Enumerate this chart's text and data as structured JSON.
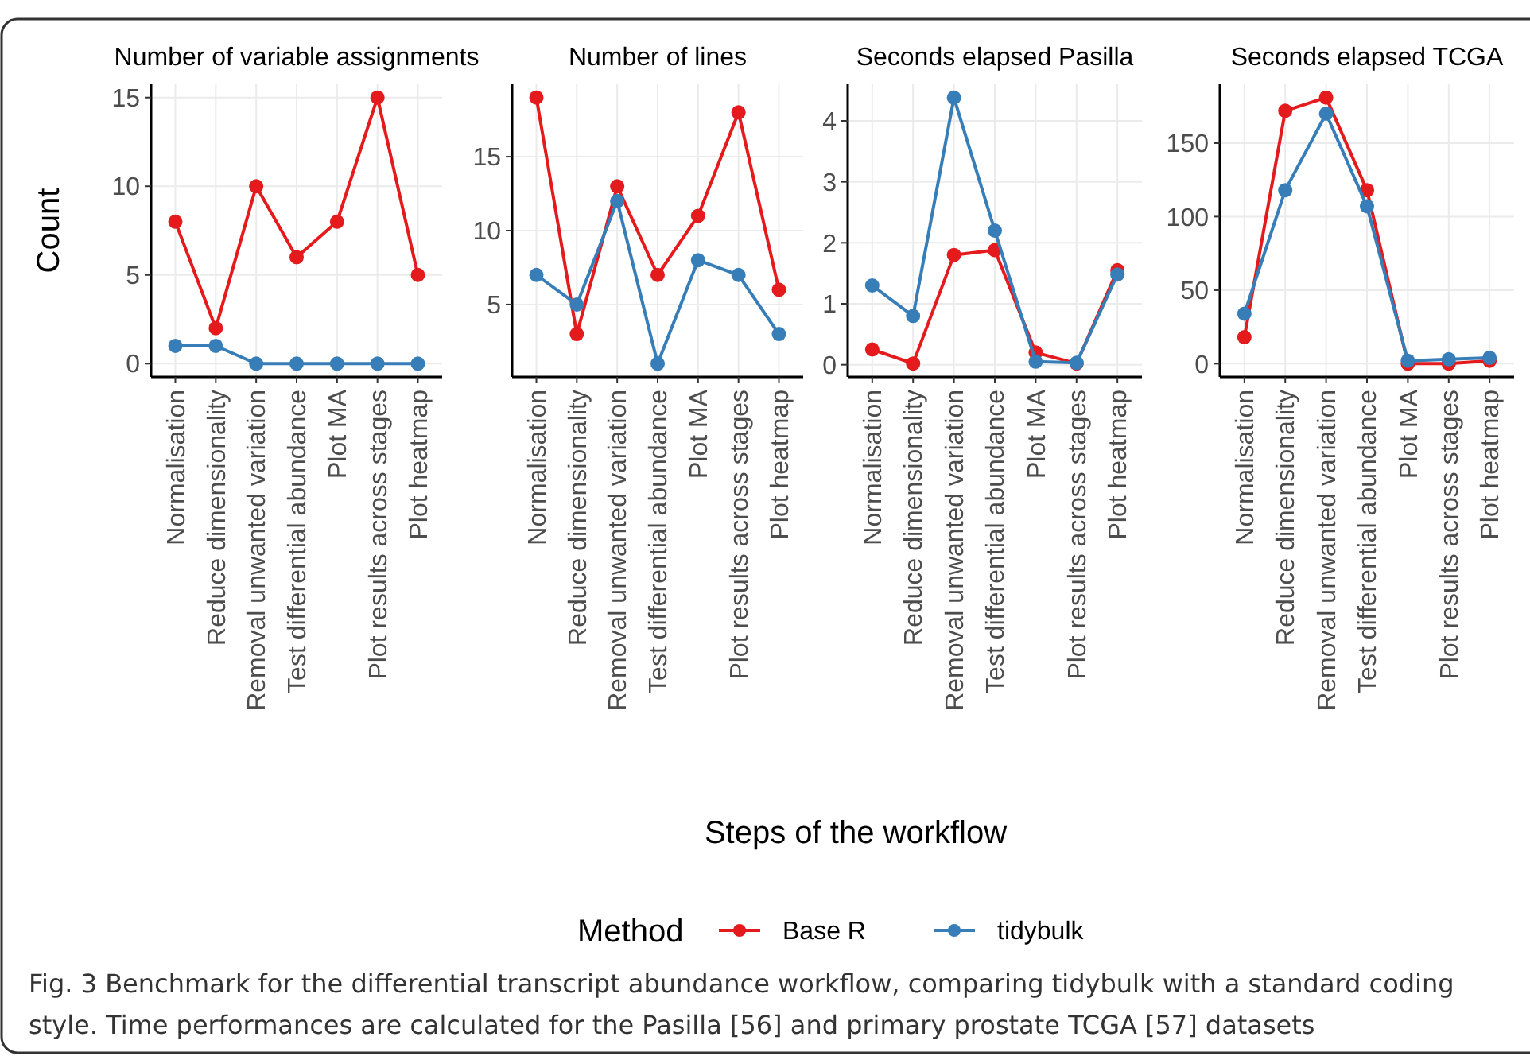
{
  "chart_data": [
    {
      "type": "line",
      "title": "Number of variable assignments",
      "ylabel": "Count",
      "legend": "bottom",
      "legend_title": "Method",
      "marker": "circle",
      "grid": true,
      "categories": [
        "Normalisation",
        "Reduce dimensionality",
        "Removal unwanted variation",
        "Test differential abundance",
        "Plot MA",
        "Plot results across stages",
        "Plot heatmap"
      ],
      "ylim": [
        -0.75,
        15.75
      ],
      "yticks": [
        0,
        5,
        10,
        15
      ],
      "series": [
        {
          "name": "Base R",
          "color": "#e41a1c",
          "values": [
            8,
            2,
            10,
            6,
            8,
            15,
            5
          ]
        },
        {
          "name": "tidybulk",
          "color": "#377eb8",
          "values": [
            1,
            1,
            0,
            0,
            0,
            0,
            0
          ]
        }
      ],
      "annotations": [
        "Fig. 3 Benchmark for the differential transcript abundance workflow, comparing tidybulk with a standard coding style. Time performances are calculated for the Pasilla [56] and primary prostate TCGA [57] datasets"
      ]
    },
    {
      "type": "line",
      "title": "Number of lines",
      "marker": "circle",
      "grid": true,
      "categories": [
        "Normalisation",
        "Reduce dimensionality",
        "Removal unwanted variation",
        "Test differential abundance",
        "Plot MA",
        "Plot results across stages",
        "Plot heatmap"
      ],
      "ylim": [
        0.1,
        19.9
      ],
      "yticks": [
        5,
        10,
        15
      ],
      "series": [
        {
          "color": "#e41a1c",
          "values": [
            19,
            3,
            13,
            7,
            11,
            18,
            6
          ]
        },
        {
          "color": "#377eb8",
          "values": [
            7,
            5,
            12,
            1,
            8,
            7,
            3
          ]
        }
      ]
    },
    {
      "type": "line",
      "title": "Seconds elapsed Pasilla",
      "xlabel": "Steps of the workflow",
      "marker": "circle",
      "grid": true,
      "categories": [
        "Normalisation",
        "Reduce dimensionality",
        "Removal unwanted variation",
        "Test differential abundance",
        "Plot MA",
        "Plot results across stages",
        "Plot heatmap"
      ],
      "ylim": [
        -0.2,
        4.6
      ],
      "yticks": [
        0,
        1,
        2,
        3,
        4
      ],
      "series": [
        {
          "color": "#e41a1c",
          "values": [
            0.25,
            0.02,
            1.8,
            1.88,
            0.2,
            0.02,
            1.55
          ]
        },
        {
          "color": "#377eb8",
          "values": [
            1.3,
            0.8,
            4.38,
            2.2,
            0.05,
            0.03,
            1.48
          ]
        }
      ]
    },
    {
      "type": "line",
      "title": "Seconds elapsed TCGA",
      "marker": "circle",
      "grid": true,
      "categories": [
        "Normalisation",
        "Reduce dimensionality",
        "Removal unwanted variation",
        "Test differential abundance",
        "Plot MA",
        "Plot results across stages",
        "Plot heatmap"
      ],
      "ylim": [
        -9,
        190
      ],
      "yticks": [
        0,
        50,
        100,
        150
      ],
      "series": [
        {
          "color": "#e41a1c",
          "values": [
            18,
            172,
            181,
            118,
            0,
            0,
            2
          ]
        },
        {
          "color": "#377eb8",
          "values": [
            34,
            118,
            170,
            107,
            2,
            3,
            4
          ]
        }
      ]
    }
  ]
}
